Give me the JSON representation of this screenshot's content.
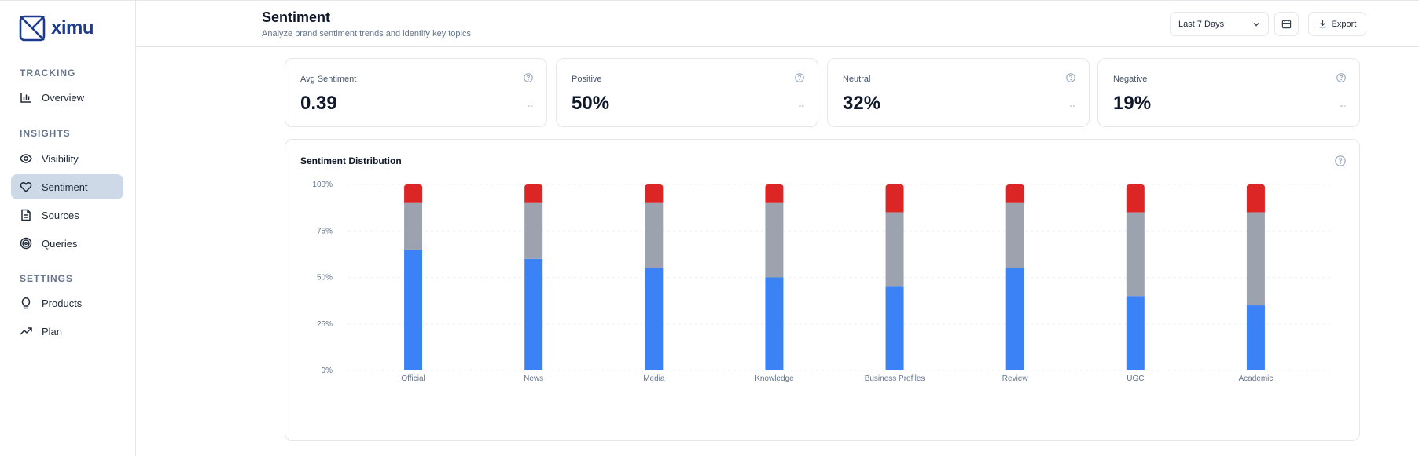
{
  "app": {
    "name": "ximu"
  },
  "sidebar": {
    "sections": [
      {
        "title": "TRACKING",
        "items": [
          {
            "label": "Overview",
            "icon": "bar-chart-icon"
          }
        ]
      },
      {
        "title": "INSIGHTS",
        "items": [
          {
            "label": "Visibility",
            "icon": "eye-icon"
          },
          {
            "label": "Sentiment",
            "icon": "heart-icon",
            "active": true
          },
          {
            "label": "Sources",
            "icon": "document-icon"
          },
          {
            "label": "Queries",
            "icon": "target-icon"
          }
        ]
      },
      {
        "title": "SETTINGS",
        "items": [
          {
            "label": "Products",
            "icon": "lightbulb-icon"
          },
          {
            "label": "Plan",
            "icon": "trending-up-icon"
          }
        ]
      }
    ]
  },
  "header": {
    "title": "Sentiment",
    "subtitle": "Analyze brand sentiment trends and identify key topics",
    "date_range": "Last 7 Days",
    "export_label": "Export"
  },
  "stats": [
    {
      "label": "Avg Sentiment",
      "value": "0.39",
      "delta": "--"
    },
    {
      "label": "Positive",
      "value": "50%",
      "delta": "--"
    },
    {
      "label": "Neutral",
      "value": "32%",
      "delta": "--"
    },
    {
      "label": "Negative",
      "value": "19%",
      "delta": "--"
    }
  ],
  "colors": {
    "positive": "#3b82f6",
    "neutral": "#9ca3af",
    "negative": "#dc2626",
    "active_nav": "#cdd9e6"
  },
  "chart_data": {
    "type": "bar",
    "stacked": true,
    "title": "Sentiment Distribution",
    "categories": [
      "Official",
      "News",
      "Media",
      "Knowledge",
      "Business Profiles",
      "Review",
      "UGC",
      "Academic"
    ],
    "series": [
      {
        "values": [
          65,
          60,
          55,
          50,
          45,
          55,
          40,
          35
        ],
        "color": "#3b82f6"
      },
      {
        "values": [
          25,
          30,
          35,
          40,
          40,
          35,
          45,
          50
        ],
        "color": "#9ca3af"
      },
      {
        "values": [
          10,
          10,
          10,
          10,
          15,
          10,
          15,
          15
        ],
        "color": "#dc2626"
      }
    ],
    "yticks": [
      "0%",
      "25%",
      "50%",
      "75%",
      "100%"
    ],
    "ylim": [
      0,
      100
    ],
    "grid": true,
    "legend": "none"
  }
}
